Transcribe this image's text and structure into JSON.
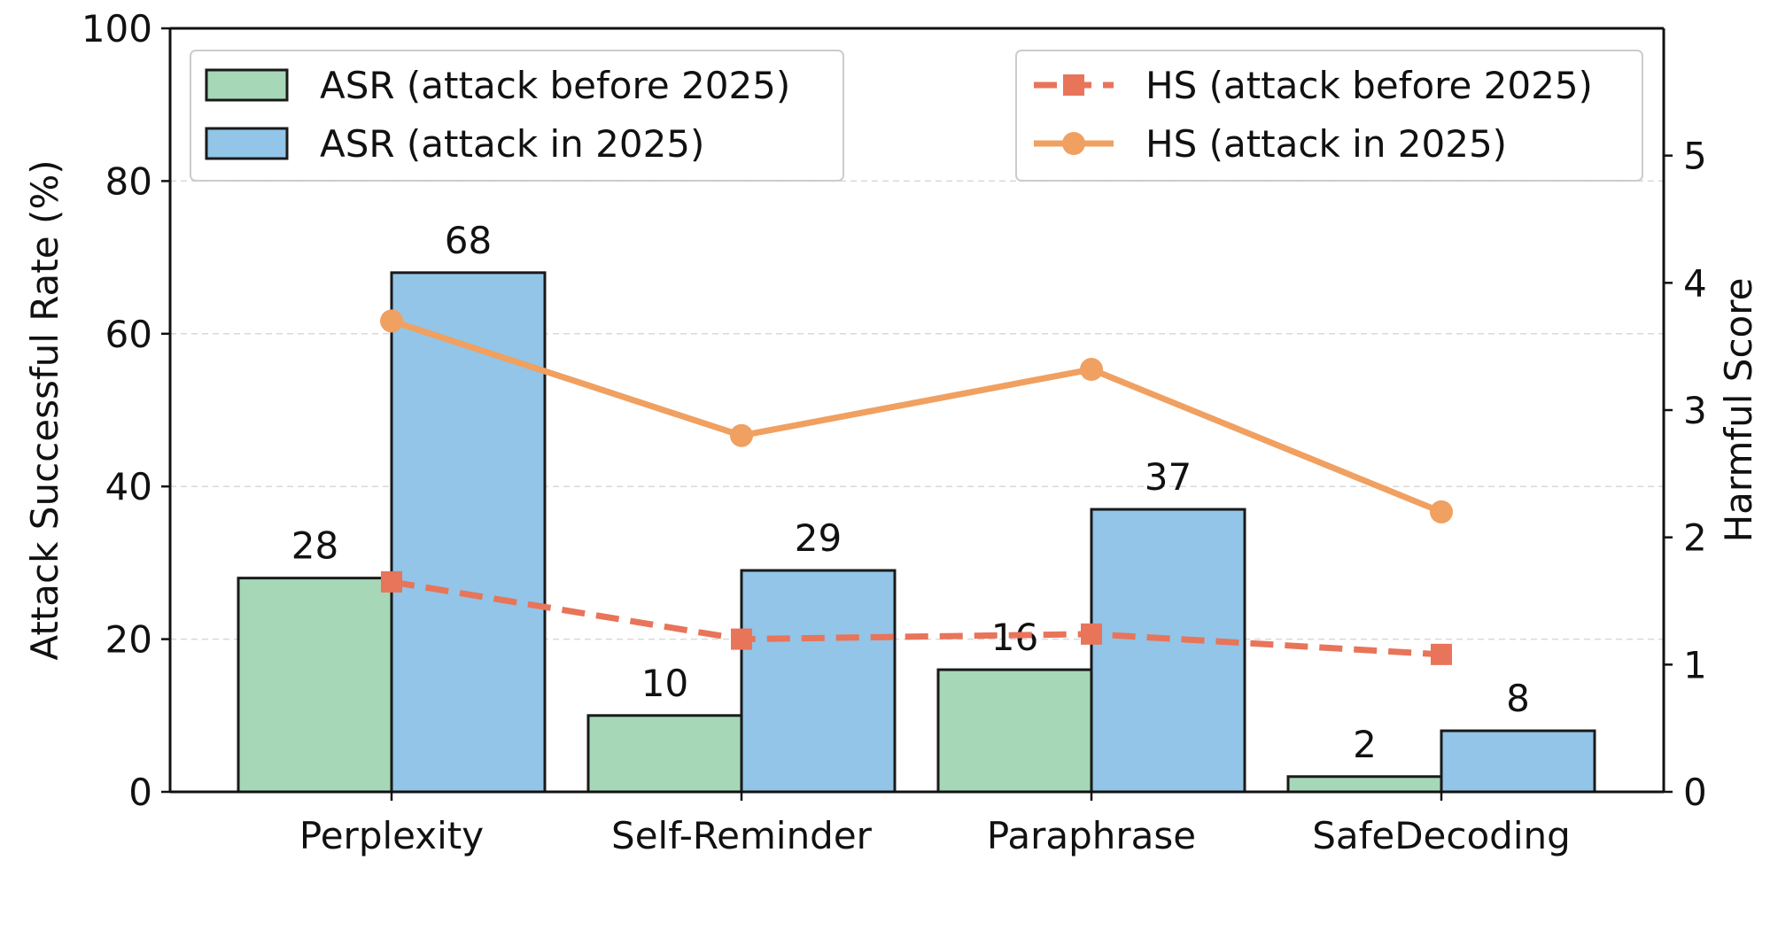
{
  "chart_data": {
    "type": "bar",
    "categories": [
      "Perplexity",
      "Self-Reminder",
      "Paraphrase",
      "SafeDecoding"
    ],
    "ylabel": "Attack Successful Rate (%)",
    "y2label": "Harmful Score",
    "ylim": [
      0,
      100
    ],
    "y2lim": [
      0,
      6
    ],
    "yticks": [
      0,
      20,
      40,
      60,
      80,
      100
    ],
    "y2ticks": [
      0,
      1,
      2,
      3,
      4,
      5
    ],
    "grid": "horizontal dashed",
    "legend_left": "top-left",
    "legend_right": "top-right",
    "bar_series": [
      {
        "name": "ASR (attack before 2025)",
        "values": [
          28,
          10,
          16,
          2
        ],
        "labels": [
          "28",
          "10",
          "16",
          "2"
        ],
        "color": "#a6d8b7"
      },
      {
        "name": "ASR (attack in 2025)",
        "values": [
          68,
          29,
          37,
          8
        ],
        "labels": [
          "68",
          "29",
          "37",
          "8"
        ],
        "color": "#92c5e8"
      }
    ],
    "line_series": [
      {
        "name": "HS (attack before 2025)",
        "values": [
          1.65,
          1.2,
          1.24,
          1.08
        ],
        "color": "#e8745a",
        "style": "dashed",
        "marker": "square"
      },
      {
        "name": "HS (attack in 2025)",
        "values": [
          3.7,
          2.8,
          3.32,
          2.2
        ],
        "color": "#f0a060",
        "style": "solid",
        "marker": "circle"
      }
    ]
  }
}
